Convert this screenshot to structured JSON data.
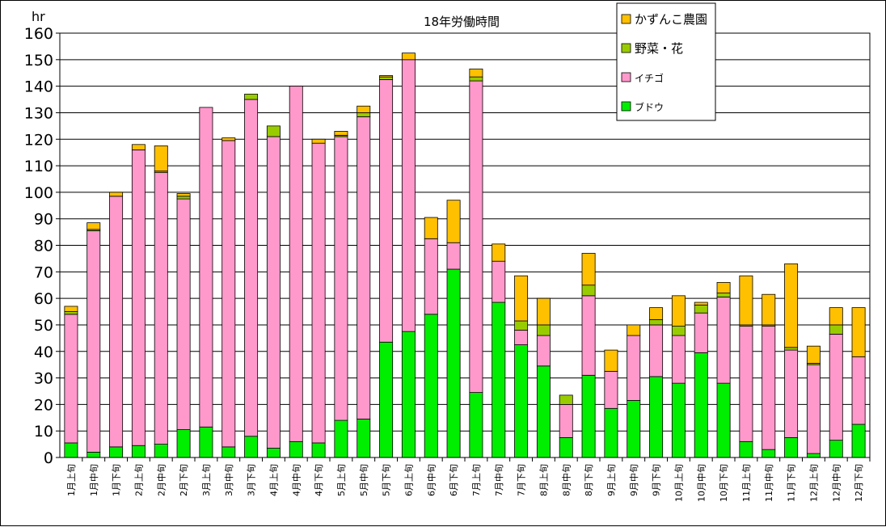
{
  "chart_data": {
    "type": "bar",
    "stacked": true,
    "title": "18年労働時間",
    "ylabel": "hr",
    "ylim": [
      0,
      160
    ],
    "ytick_step": 10,
    "grid": true,
    "legend_position": "top-right",
    "categories": [
      "1月上旬",
      "1月中旬",
      "1月下旬",
      "2月上旬",
      "2月中旬",
      "2月下旬",
      "3月上旬",
      "3月中旬",
      "3月下旬",
      "4月上旬",
      "4月中旬",
      "4月下旬",
      "5月上旬",
      "5月中旬",
      "5月下旬",
      "6月上旬",
      "6月中旬",
      "6月下旬",
      "7月上旬",
      "7月中旬",
      "7月下旬",
      "8月上旬",
      "8月中旬",
      "8月下旬",
      "9月上旬",
      "9月中旬",
      "9月下旬",
      "10月上旬",
      "10月中旬",
      "10月下旬",
      "11月上旬",
      "11月中旬",
      "11月下旬",
      "12月上旬",
      "12月中旬",
      "12月下旬"
    ],
    "series": [
      {
        "name": "ブドウ",
        "color": "#00ee00",
        "values": [
          5.5,
          2,
          4,
          4.5,
          5,
          10.5,
          11.5,
          4,
          8,
          3.5,
          6,
          5.5,
          14,
          14.5,
          43.5,
          47.5,
          54,
          71,
          24.5,
          58.5,
          42.5,
          34.5,
          7.5,
          31,
          18.5,
          21.5,
          30.5,
          28,
          39.5,
          28,
          6,
          3,
          7.5,
          1.5,
          6.5,
          12.5
        ]
      },
      {
        "name": "イチゴ",
        "color": "#ff99cc",
        "values": [
          48.5,
          83.5,
          94.5,
          111.5,
          102.5,
          87,
          120.5,
          115.5,
          127,
          117.5,
          134,
          113,
          107,
          114,
          99,
          102.5,
          28.5,
          10,
          117.5,
          15.5,
          5.5,
          11.5,
          12.5,
          30,
          14,
          24.5,
          19.5,
          18,
          15,
          32.5,
          43.5,
          46.5,
          33,
          33.5,
          40,
          25.5
        ]
      },
      {
        "name": "野菜・花",
        "color": "#99cc00",
        "values": [
          1,
          0.5,
          0,
          0,
          0.5,
          1,
          0,
          0,
          2,
          4,
          0,
          0,
          0.5,
          1.5,
          1,
          0,
          0,
          0,
          1.5,
          0,
          3.5,
          4,
          3.5,
          4,
          0,
          0,
          2,
          3.5,
          3,
          1.5,
          0.5,
          0.5,
          1,
          0.5,
          3.5,
          0
        ]
      },
      {
        "name": "かずんこ農園",
        "color": "#ffc000",
        "values": [
          2,
          2.5,
          1.5,
          2,
          9.5,
          1,
          0,
          1,
          0,
          0,
          0,
          1.5,
          1.5,
          2.5,
          0.5,
          2.5,
          8,
          16,
          3,
          6.5,
          17,
          10,
          0,
          12,
          8,
          4,
          4.5,
          11.5,
          1,
          4,
          18.5,
          11.5,
          31.5,
          6.5,
          6.5,
          18.5
        ]
      }
    ]
  }
}
